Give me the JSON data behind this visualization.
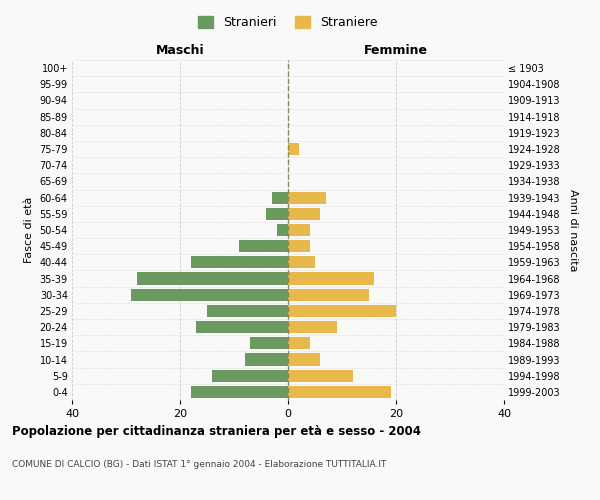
{
  "age_groups": [
    "0-4",
    "5-9",
    "10-14",
    "15-19",
    "20-24",
    "25-29",
    "30-34",
    "35-39",
    "40-44",
    "45-49",
    "50-54",
    "55-59",
    "60-64",
    "65-69",
    "70-74",
    "75-79",
    "80-84",
    "85-89",
    "90-94",
    "95-99",
    "100+"
  ],
  "birth_years": [
    "1999-2003",
    "1994-1998",
    "1989-1993",
    "1984-1988",
    "1979-1983",
    "1974-1978",
    "1969-1973",
    "1964-1968",
    "1959-1963",
    "1954-1958",
    "1949-1953",
    "1944-1948",
    "1939-1943",
    "1934-1938",
    "1929-1933",
    "1924-1928",
    "1919-1923",
    "1914-1918",
    "1909-1913",
    "1904-1908",
    "≤ 1903"
  ],
  "males": [
    18,
    14,
    8,
    7,
    17,
    15,
    29,
    28,
    18,
    9,
    2,
    4,
    3,
    0,
    0,
    0,
    0,
    0,
    0,
    0,
    0
  ],
  "females": [
    19,
    12,
    6,
    4,
    9,
    20,
    15,
    16,
    5,
    4,
    4,
    6,
    7,
    0,
    0,
    2,
    0,
    0,
    0,
    0,
    0
  ],
  "male_color": "#6a9a5f",
  "female_color": "#e8b84b",
  "background_color": "#f9f9f9",
  "grid_color": "#cccccc",
  "dashed_line_color": "#888855",
  "title": "Popolazione per cittadinanza straniera per età e sesso - 2004",
  "subtitle": "COMUNE DI CALCIO (BG) - Dati ISTAT 1° gennaio 2004 - Elaborazione TUTTITALIA.IT",
  "xlabel_left": "Maschi",
  "xlabel_right": "Femmine",
  "ylabel_left": "Fasce di età",
  "ylabel_right": "Anni di nascita",
  "legend_male": "Stranieri",
  "legend_female": "Straniere",
  "xlim": 40
}
